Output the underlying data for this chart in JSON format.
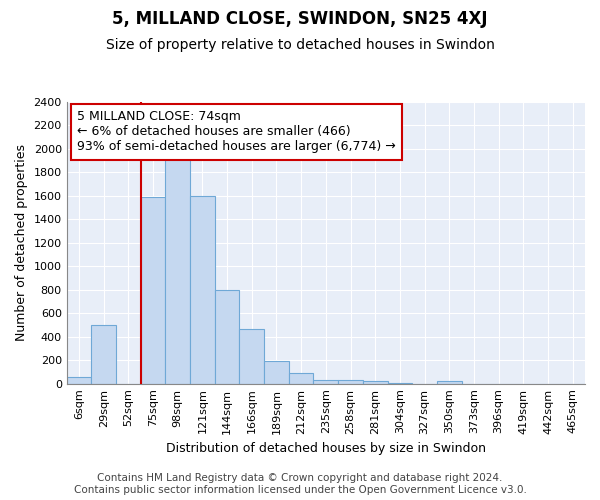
{
  "title": "5, MILLAND CLOSE, SWINDON, SN25 4XJ",
  "subtitle": "Size of property relative to detached houses in Swindon",
  "xlabel": "Distribution of detached houses by size in Swindon",
  "ylabel": "Number of detached properties",
  "categories": [
    "6sqm",
    "29sqm",
    "52sqm",
    "75sqm",
    "98sqm",
    "121sqm",
    "144sqm",
    "166sqm",
    "189sqm",
    "212sqm",
    "235sqm",
    "258sqm",
    "281sqm",
    "304sqm",
    "327sqm",
    "350sqm",
    "373sqm",
    "396sqm",
    "419sqm",
    "442sqm",
    "465sqm"
  ],
  "values": [
    60,
    500,
    0,
    1590,
    1960,
    1600,
    800,
    470,
    190,
    95,
    35,
    30,
    20,
    5,
    0,
    20,
    0,
    0,
    0,
    0,
    0
  ],
  "bar_color": "#c5d8f0",
  "bar_edge_color": "#6fa8d6",
  "vline_color": "#cc0000",
  "vline_pos": 2.5,
  "annotation_text": "5 MILLAND CLOSE: 74sqm\n← 6% of detached houses are smaller (466)\n93% of semi-detached houses are larger (6,774) →",
  "annotation_box_facecolor": "#ffffff",
  "annotation_box_edgecolor": "#cc0000",
  "ylim": [
    0,
    2400
  ],
  "yticks": [
    0,
    200,
    400,
    600,
    800,
    1000,
    1200,
    1400,
    1600,
    1800,
    2000,
    2200,
    2400
  ],
  "bg_color": "#e8eef8",
  "grid_color": "#ffffff",
  "fig_bg_color": "#ffffff",
  "title_fontsize": 12,
  "subtitle_fontsize": 10,
  "axis_label_fontsize": 9,
  "tick_fontsize": 8,
  "annotation_fontsize": 9,
  "footer_fontsize": 7.5,
  "footer_text": "Contains HM Land Registry data © Crown copyright and database right 2024.\nContains public sector information licensed under the Open Government Licence v3.0."
}
